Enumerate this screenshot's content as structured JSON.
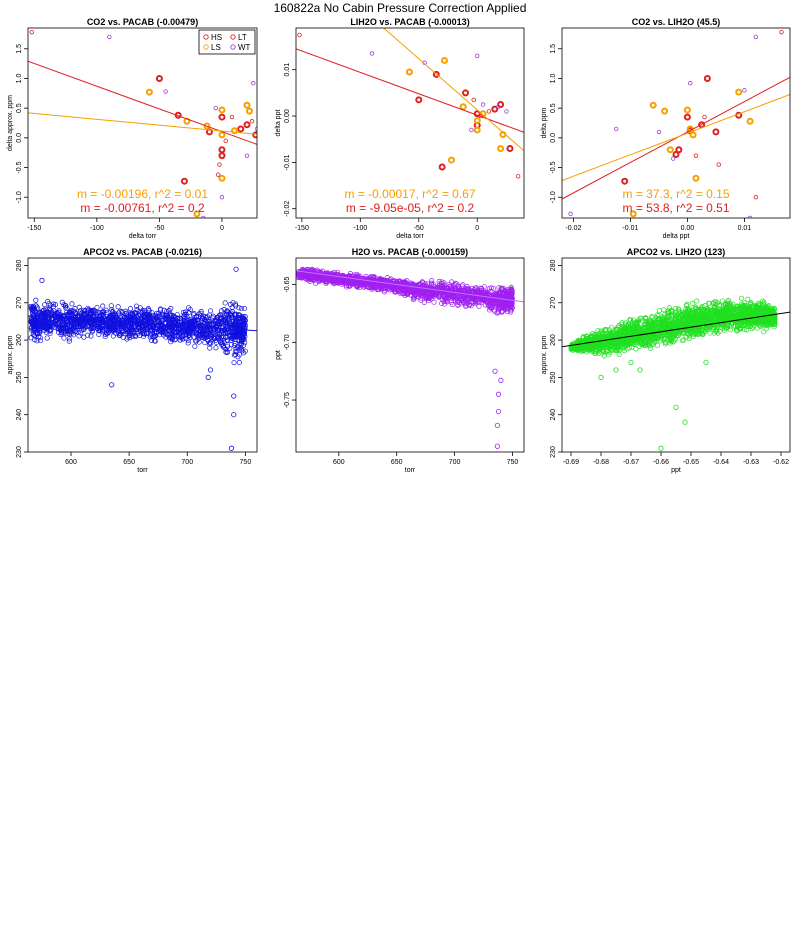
{
  "figure_title": "160822a   No Cabin Pressure Correction Applied",
  "chart_data": [
    {
      "type": "scatter",
      "title": "CO2 vs. PACAB (-0.00479)",
      "xlabel": "delta torr",
      "ylabel": "delta approx. ppm",
      "xlim": [
        -155,
        28
      ],
      "ylim": [
        -1.35,
        1.85
      ],
      "xticks": [
        -150,
        -100,
        -50,
        0
      ],
      "yticks": [
        -1.0,
        -0.5,
        0.0,
        0.5,
        1.0,
        1.5
      ],
      "xtick_labels": [
        "-150",
        "-100",
        "-50",
        "0"
      ],
      "ytick_labels": [
        "-1.0",
        "-0.5",
        "0.0",
        "0.5",
        "1.0",
        "1.5"
      ],
      "legend": {
        "position": "top-right",
        "entries": [
          {
            "label": "HS",
            "color": "#e02020"
          },
          {
            "label": "LT",
            "color": "#e02020"
          },
          {
            "label": "LS",
            "color": "#f5a000"
          },
          {
            "label": "WT",
            "color": "#a040e0"
          }
        ]
      },
      "series": [
        {
          "name": "HS",
          "color": "#e02020",
          "bold": true,
          "points": [
            [
              -50,
              1.0
            ],
            [
              -35,
              0.38
            ],
            [
              -30,
              -0.73
            ],
            [
              -10,
              0.1
            ],
            [
              0,
              0.35
            ],
            [
              0,
              -0.2
            ],
            [
              0,
              -0.3
            ],
            [
              15,
              0.15
            ],
            [
              20,
              0.22
            ],
            [
              27,
              0.05
            ]
          ]
        },
        {
          "name": "LS",
          "color": "#f5a000",
          "bold": true,
          "points": [
            [
              -58,
              0.77
            ],
            [
              -28,
              0.28
            ],
            [
              -20,
              -1.28
            ],
            [
              -12,
              0.2
            ],
            [
              0,
              0.47
            ],
            [
              0,
              0.05
            ],
            [
              0,
              -0.68
            ],
            [
              20,
              0.55
            ],
            [
              22,
              0.45
            ],
            [
              10,
              0.12
            ]
          ]
        },
        {
          "name": "LT",
          "color": "#e02020",
          "bold": false,
          "points": [
            [
              -152,
              1.78
            ],
            [
              -2,
              -0.45
            ],
            [
              -3,
              -0.62
            ],
            [
              3,
              -0.05
            ],
            [
              8,
              0.35
            ],
            [
              24,
              0.28
            ]
          ]
        },
        {
          "name": "WT",
          "color": "#a040e0",
          "bold": false,
          "points": [
            [
              -90,
              1.7
            ],
            [
              -45,
              0.78
            ],
            [
              -15,
              -1.35
            ],
            [
              0,
              -1.0
            ],
            [
              -5,
              0.5
            ],
            [
              20,
              -0.3
            ],
            [
              25,
              0.92
            ],
            [
              28,
              0.15
            ]
          ]
        }
      ],
      "lines": [
        {
          "color": "#e02020",
          "x": [
            -155,
            28
          ],
          "y": [
            1.29,
            -0.11
          ]
        },
        {
          "color": "#f5a000",
          "x": [
            -155,
            28
          ],
          "y": [
            0.42,
            0.06
          ]
        }
      ],
      "annotations": [
        {
          "text": "m = -0.00196, r^2 = 0.01",
          "color": "#f5a000"
        },
        {
          "text": "m = -0.00761, r^2 = 0.2",
          "color": "#e02020"
        }
      ]
    },
    {
      "type": "scatter",
      "title": "LIH2O vs. PACAB (-0.00013)",
      "xlabel": "delta torr",
      "ylabel": "delta ppt",
      "xlim": [
        -155,
        40
      ],
      "ylim": [
        -0.022,
        0.019
      ],
      "xticks": [
        -150,
        -100,
        -50,
        0
      ],
      "yticks": [
        -0.02,
        -0.01,
        0.0,
        0.01
      ],
      "xtick_labels": [
        "-150",
        "-100",
        "-50",
        "0"
      ],
      "ytick_labels": [
        "-0.02",
        "-0.01",
        "0.00",
        "0.01"
      ],
      "series": [
        {
          "name": "HS",
          "color": "#e02020",
          "bold": true,
          "points": [
            [
              -50,
              0.0035
            ],
            [
              -35,
              0.009
            ],
            [
              -30,
              -0.011
            ],
            [
              -10,
              0.005
            ],
            [
              0,
              -0.002
            ],
            [
              0,
              0.0005
            ],
            [
              15,
              0.0015
            ],
            [
              20,
              0.0025
            ],
            [
              28,
              -0.007
            ]
          ]
        },
        {
          "name": "LS",
          "color": "#f5a000",
          "bold": true,
          "points": [
            [
              -58,
              0.0095
            ],
            [
              -28,
              0.012
            ],
            [
              -22,
              -0.0095
            ],
            [
              -12,
              0.002
            ],
            [
              0,
              -0.001
            ],
            [
              0,
              -0.003
            ],
            [
              5,
              0.0005
            ],
            [
              22,
              -0.004
            ],
            [
              20,
              -0.007
            ]
          ]
        },
        {
          "name": "LT",
          "color": "#e02020",
          "bold": false,
          "points": [
            [
              -152,
              0.0175
            ],
            [
              -3,
              0.0035
            ],
            [
              3,
              0.0
            ],
            [
              10,
              0.001
            ],
            [
              35,
              -0.013
            ]
          ]
        },
        {
          "name": "WT",
          "color": "#a040e0",
          "bold": false,
          "points": [
            [
              -90,
              0.0135
            ],
            [
              -45,
              0.0115
            ],
            [
              0,
              0.013
            ],
            [
              5,
              0.0025
            ],
            [
              -5,
              -0.003
            ],
            [
              18,
              0.002
            ],
            [
              25,
              0.001
            ]
          ]
        }
      ],
      "lines": [
        {
          "color": "#e02020",
          "x": [
            -155,
            40
          ],
          "y": [
            0.0145,
            -0.0035
          ]
        },
        {
          "color": "#f5a000",
          "x": [
            -80,
            40
          ],
          "y": [
            0.019,
            -0.0075
          ]
        }
      ],
      "annotations": [
        {
          "text": "m = -0.00017, r^2 = 0.67",
          "color": "#f5a000"
        },
        {
          "text": "m = -9.05e-05, r^2 = 0.2",
          "color": "#e02020"
        }
      ]
    },
    {
      "type": "scatter",
      "title": "CO2 vs. LIH2O (45.5)",
      "xlabel": "delta ppt",
      "ylabel": "delta ppm",
      "xlim": [
        -0.022,
        0.018
      ],
      "ylim": [
        -1.35,
        1.85
      ],
      "xticks": [
        -0.02,
        -0.01,
        0.0,
        0.01
      ],
      "yticks": [
        -1.0,
        -0.5,
        0.0,
        0.5,
        1.0,
        1.5
      ],
      "xtick_labels": [
        "-0.02",
        "-0.01",
        "0.00",
        "0.01"
      ],
      "ytick_labels": [
        "-1.0",
        "-0.5",
        "0.0",
        "0.5",
        "1.0",
        "1.5"
      ],
      "series": [
        {
          "name": "HS",
          "color": "#e02020",
          "bold": true,
          "points": [
            [
              -0.011,
              -0.73
            ],
            [
              -0.002,
              -0.28
            ],
            [
              -0.0015,
              -0.2
            ],
            [
              0.0,
              0.35
            ],
            [
              0.0005,
              0.12
            ],
            [
              0.0025,
              0.22
            ],
            [
              0.0035,
              1.0
            ],
            [
              0.005,
              0.1
            ],
            [
              0.009,
              0.38
            ]
          ]
        },
        {
          "name": "LS",
          "color": "#f5a000",
          "bold": true,
          "points": [
            [
              -0.0095,
              -1.28
            ],
            [
              -0.006,
              0.55
            ],
            [
              -0.004,
              0.45
            ],
            [
              -0.003,
              -0.2
            ],
            [
              0.0,
              0.47
            ],
            [
              0.0005,
              0.15
            ],
            [
              0.001,
              0.05
            ],
            [
              0.0015,
              -0.68
            ],
            [
              0.009,
              0.77
            ],
            [
              0.011,
              0.28
            ]
          ]
        },
        {
          "name": "LT",
          "color": "#e02020",
          "bold": false,
          "points": [
            [
              0.0165,
              1.78
            ],
            [
              0.0015,
              -0.3
            ],
            [
              0.0055,
              -0.45
            ],
            [
              0.003,
              0.35
            ],
            [
              0.012,
              -1.0
            ]
          ]
        },
        {
          "name": "WT",
          "color": "#a040e0",
          "bold": false,
          "points": [
            [
              -0.0205,
              -1.28
            ],
            [
              -0.0125,
              0.15
            ],
            [
              -0.005,
              0.1
            ],
            [
              -0.0025,
              -0.35
            ],
            [
              0.0005,
              0.92
            ],
            [
              0.01,
              0.8
            ],
            [
              0.011,
              -1.35
            ],
            [
              0.012,
              1.7
            ]
          ]
        }
      ],
      "lines": [
        {
          "color": "#e02020",
          "x": [
            -0.022,
            0.018
          ],
          "y": [
            -1.03,
            1.02
          ]
        },
        {
          "color": "#f5a000",
          "x": [
            -0.022,
            0.018
          ],
          "y": [
            -0.72,
            0.73
          ]
        }
      ],
      "annotations": [
        {
          "text": "m = 37.3, r^2 = 0.15",
          "color": "#f5a000"
        },
        {
          "text": "m = 53.8, r^2 = 0.51",
          "color": "#e02020"
        }
      ]
    },
    {
      "type": "scatter",
      "title": "APCO2 vs. PACAB (-0.0216)",
      "xlabel": "torr",
      "ylabel": "approx. ppm",
      "xlim": [
        563,
        760
      ],
      "ylim": [
        230,
        282
      ],
      "xticks": [
        600,
        650,
        700,
        750
      ],
      "yticks": [
        230,
        240,
        250,
        260,
        270,
        280
      ],
      "xtick_labels": [
        "600",
        "650",
        "700",
        "750"
      ],
      "ytick_labels": [
        "230",
        "240",
        "250",
        "260",
        "270",
        "280"
      ],
      "dense_series": {
        "color": "#1010e0",
        "band": [
          [
            565,
            258,
            272
          ],
          [
            580,
            259,
            272
          ],
          [
            600,
            259,
            271
          ],
          [
            620,
            260,
            270
          ],
          [
            640,
            259,
            270
          ],
          [
            660,
            259,
            270
          ],
          [
            680,
            258,
            270
          ],
          [
            700,
            257,
            270
          ],
          [
            720,
            256,
            270
          ],
          [
            740,
            252,
            272
          ],
          [
            750,
            255,
            270
          ]
        ],
        "outliers": [
          [
            575,
            276
          ],
          [
            635,
            248
          ],
          [
            718,
            250
          ],
          [
            720,
            252
          ],
          [
            740,
            245
          ],
          [
            740,
            240
          ],
          [
            738,
            231
          ],
          [
            742,
            279
          ],
          [
            745,
            266
          ],
          [
            748,
            262
          ]
        ]
      },
      "lines": [
        {
          "color": "#1010e0",
          "x": [
            563,
            760
          ],
          "y": [
            266.5,
            262.5
          ]
        }
      ]
    },
    {
      "type": "scatter",
      "title": "H2O vs. PACAB (-0.000159)",
      "xlabel": "torr",
      "ylabel": "ppt",
      "xlim": [
        563,
        760
      ],
      "ylim": [
        -0.795,
        -0.627
      ],
      "xticks": [
        600,
        650,
        700,
        750
      ],
      "yticks": [
        -0.75,
        -0.7,
        -0.65
      ],
      "xtick_labels": [
        "600",
        "650",
        "700",
        "750"
      ],
      "ytick_labels": [
        "-0.75",
        "-0.70",
        "-0.65"
      ],
      "dense_series": {
        "color": "#a020f0",
        "band": [
          [
            565,
            -0.648,
            -0.634
          ],
          [
            580,
            -0.65,
            -0.636
          ],
          [
            600,
            -0.652,
            -0.638
          ],
          [
            620,
            -0.655,
            -0.64
          ],
          [
            640,
            -0.658,
            -0.642
          ],
          [
            660,
            -0.664,
            -0.643
          ],
          [
            680,
            -0.668,
            -0.645
          ],
          [
            700,
            -0.67,
            -0.646
          ],
          [
            720,
            -0.672,
            -0.648
          ],
          [
            740,
            -0.68,
            -0.648
          ],
          [
            750,
            -0.675,
            -0.65
          ]
        ],
        "outliers": [
          [
            735,
            -0.725
          ],
          [
            738,
            -0.745
          ],
          [
            738,
            -0.76
          ],
          [
            737,
            -0.772
          ],
          [
            737,
            -0.79
          ],
          [
            740,
            -0.733
          ]
        ]
      },
      "lines": [
        {
          "color": "#c070ff",
          "x": [
            563,
            760
          ],
          "y": [
            -0.638,
            -0.665
          ]
        }
      ]
    },
    {
      "type": "scatter",
      "title": "APCO2 vs. LIH2O (123)",
      "xlabel": "ppt",
      "ylabel": "approx. ppm",
      "xlim": [
        -0.693,
        -0.617
      ],
      "ylim": [
        230,
        282
      ],
      "xticks": [
        -0.69,
        -0.68,
        -0.67,
        -0.66,
        -0.65,
        -0.64,
        -0.63,
        -0.62
      ],
      "yticks": [
        230,
        240,
        250,
        260,
        270,
        280
      ],
      "xtick_labels": [
        "-0.69",
        "-0.68",
        "-0.67",
        "-0.66",
        "-0.65",
        "-0.64",
        "-0.63",
        "-0.62"
      ],
      "ytick_labels": [
        "230",
        "240",
        "250",
        "260",
        "270",
        "280"
      ],
      "dense_series": {
        "color": "#20e020",
        "band": [
          [
            -0.69,
            257,
            259
          ],
          [
            -0.685,
            256,
            262
          ],
          [
            -0.68,
            255,
            264
          ],
          [
            -0.675,
            255,
            265
          ],
          [
            -0.67,
            256,
            267
          ],
          [
            -0.665,
            256,
            268
          ],
          [
            -0.66,
            257,
            269
          ],
          [
            -0.655,
            258,
            270
          ],
          [
            -0.65,
            259,
            271
          ],
          [
            -0.645,
            260,
            271
          ],
          [
            -0.64,
            261,
            272
          ],
          [
            -0.635,
            261,
            272
          ],
          [
            -0.63,
            262,
            272
          ],
          [
            -0.625,
            262,
            271
          ],
          [
            -0.622,
            263,
            269
          ]
        ],
        "outliers": [
          [
            -0.68,
            250
          ],
          [
            -0.667,
            252
          ],
          [
            -0.67,
            254
          ],
          [
            -0.655,
            242
          ],
          [
            -0.652,
            238
          ],
          [
            -0.66,
            231
          ],
          [
            -0.645,
            254
          ],
          [
            -0.675,
            252
          ]
        ]
      },
      "lines": [
        {
          "color": "#000000",
          "x": [
            -0.693,
            -0.617
          ],
          "y": [
            258.2,
            267.5
          ]
        }
      ]
    }
  ]
}
